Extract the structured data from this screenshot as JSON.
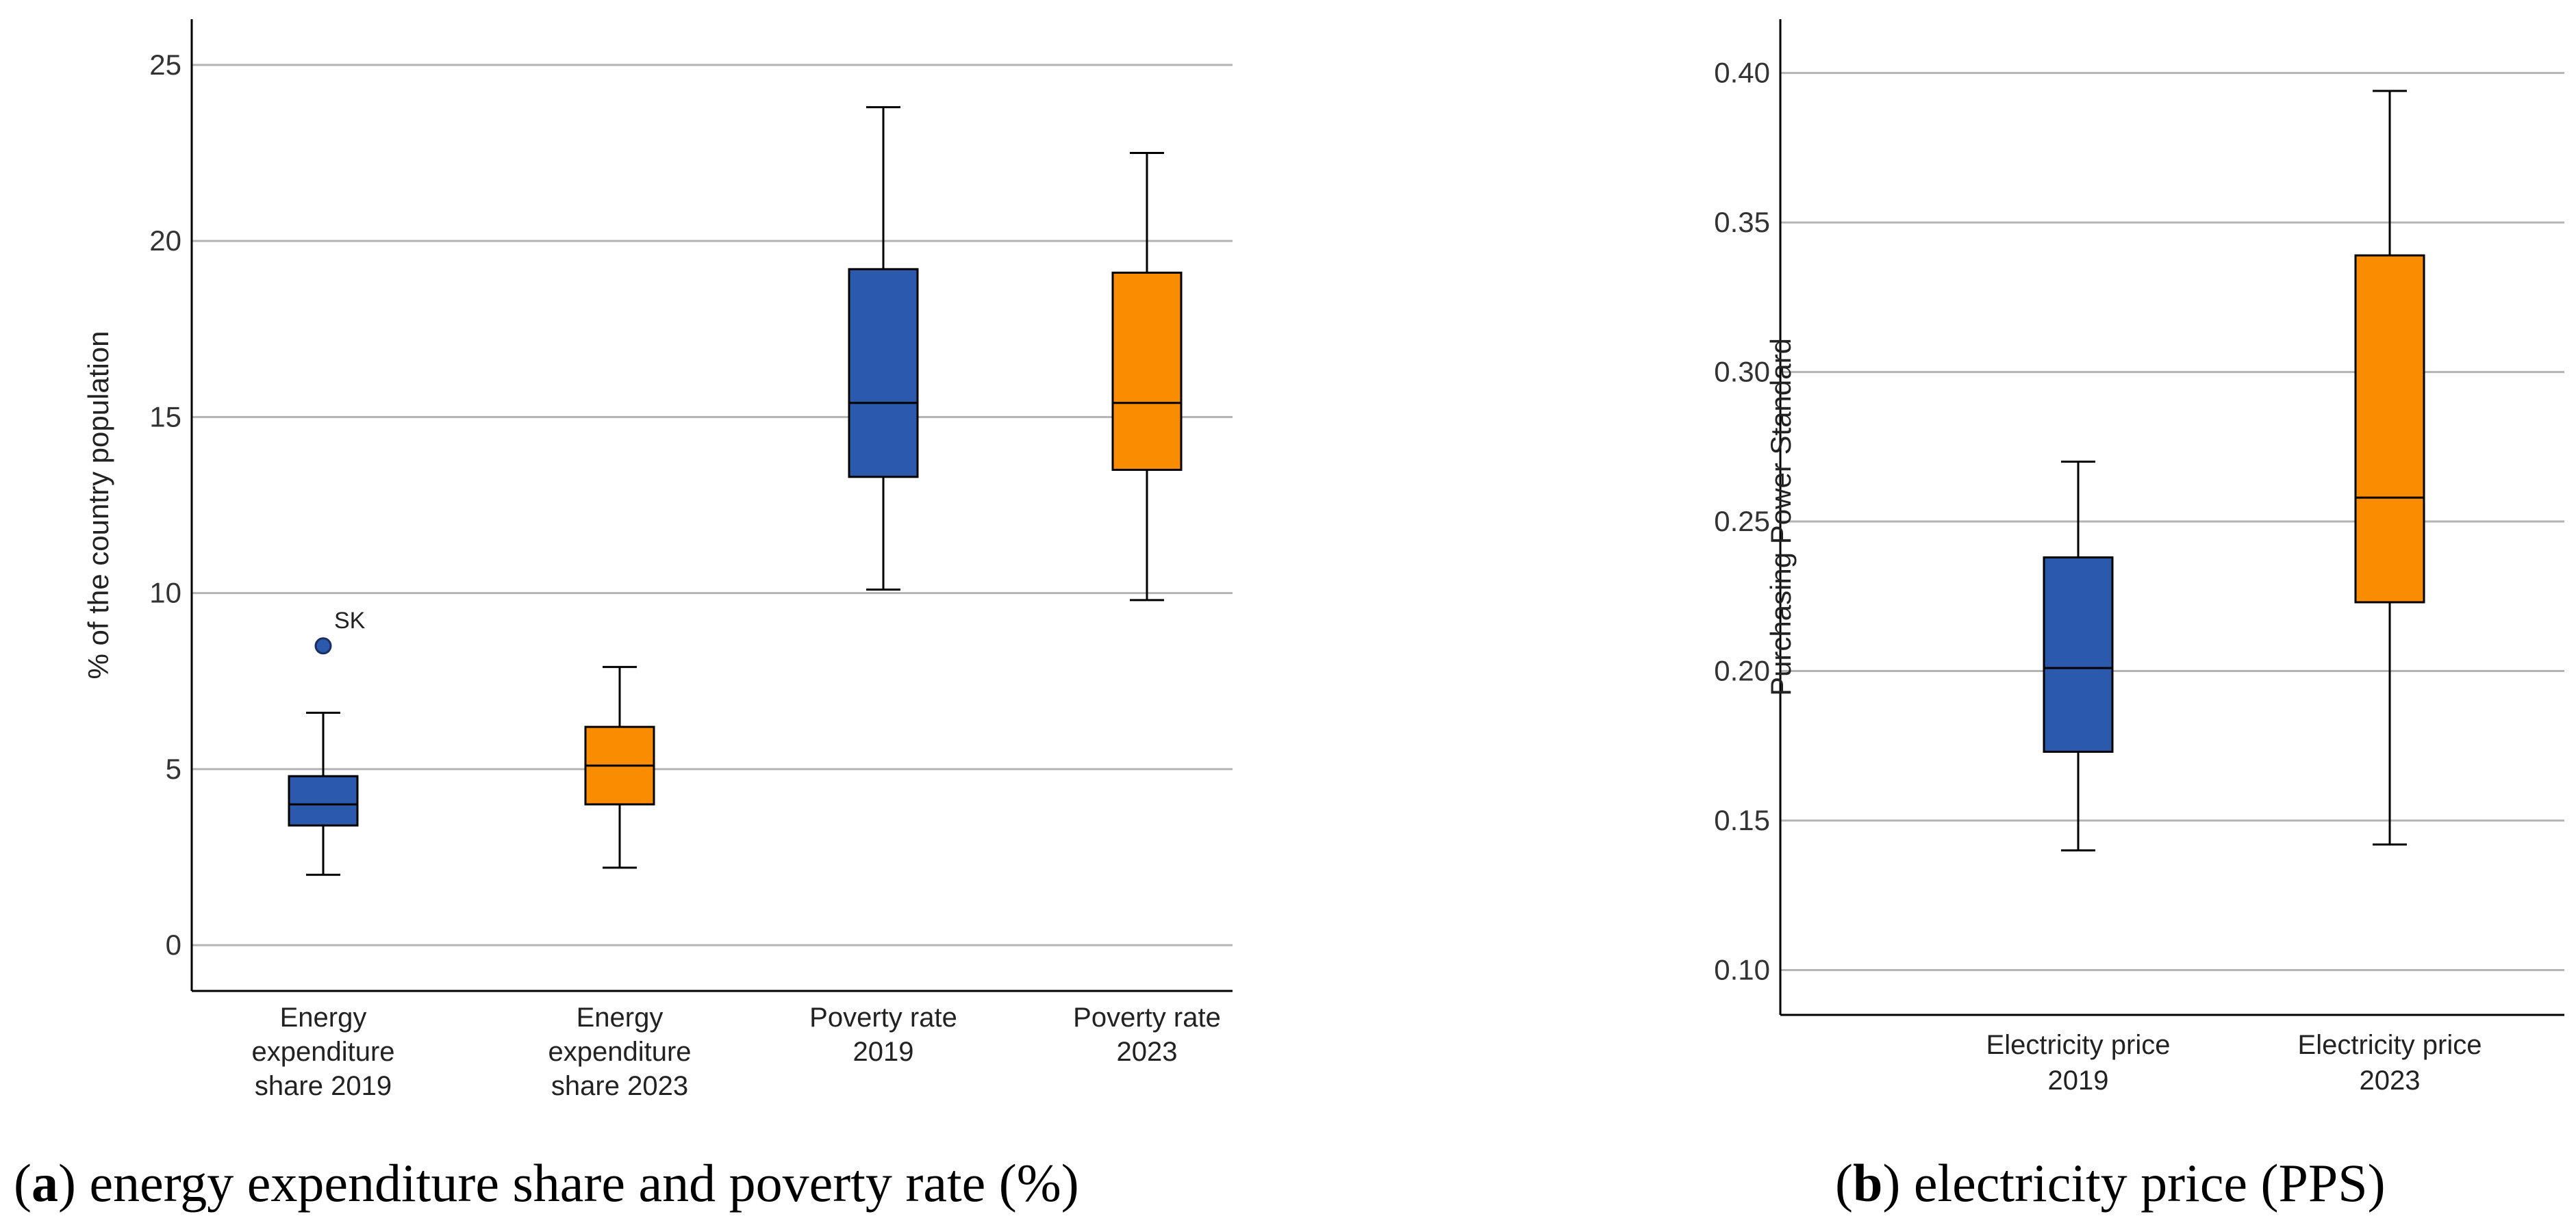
{
  "chart_data": [
    {
      "type": "box",
      "caption_letter": "a",
      "caption_text": " energy expenditure share and poverty rate (%)",
      "ylabel": "% of the country population",
      "ylim": [
        -1.3,
        26.3
      ],
      "yticks": [
        0,
        5,
        10,
        15,
        20,
        25
      ],
      "grid": true,
      "boxes": [
        {
          "label": [
            "Energy",
            "expenditure",
            "share 2019"
          ],
          "color": "#2b5aad",
          "min": 2.0,
          "q1": 3.4,
          "median": 4.0,
          "q3": 4.8,
          "max": 6.6,
          "outliers": [
            {
              "value": 8.5,
              "label": "SK"
            }
          ]
        },
        {
          "label": [
            "Energy",
            "expenditure",
            "share 2023"
          ],
          "color": "#f98c00",
          "min": 2.2,
          "q1": 4.0,
          "median": 5.1,
          "q3": 6.2,
          "max": 7.9,
          "outliers": []
        },
        {
          "label": [
            "Poverty rate",
            "2019"
          ],
          "color": "#2b5aad",
          "min": 10.1,
          "q1": 13.3,
          "median": 15.4,
          "q3": 19.2,
          "max": 23.8,
          "outliers": []
        },
        {
          "label": [
            "Poverty rate",
            "2023"
          ],
          "color": "#f98c00",
          "min": 9.8,
          "q1": 13.5,
          "median": 15.4,
          "q3": 19.1,
          "max": 22.5,
          "outliers": []
        }
      ]
    },
    {
      "type": "box",
      "caption_letter": "b",
      "caption_text": " electricity price (PPS)",
      "ylabel": "Purchasing Power Standard",
      "ylim": [
        0.085,
        0.418
      ],
      "yticks": [
        0.1,
        0.15,
        0.2,
        0.25,
        0.3,
        0.35,
        0.4
      ],
      "grid": true,
      "boxes": [
        {
          "label": [
            "Electricity price",
            "2019"
          ],
          "color": "#2b5aad",
          "min": 0.14,
          "q1": 0.173,
          "median": 0.201,
          "q3": 0.238,
          "max": 0.27,
          "outliers": []
        },
        {
          "label": [
            "Electricity price",
            "2023"
          ],
          "color": "#f98c00",
          "min": 0.142,
          "q1": 0.223,
          "median": 0.258,
          "q3": 0.339,
          "max": 0.394,
          "outliers": []
        }
      ]
    }
  ]
}
